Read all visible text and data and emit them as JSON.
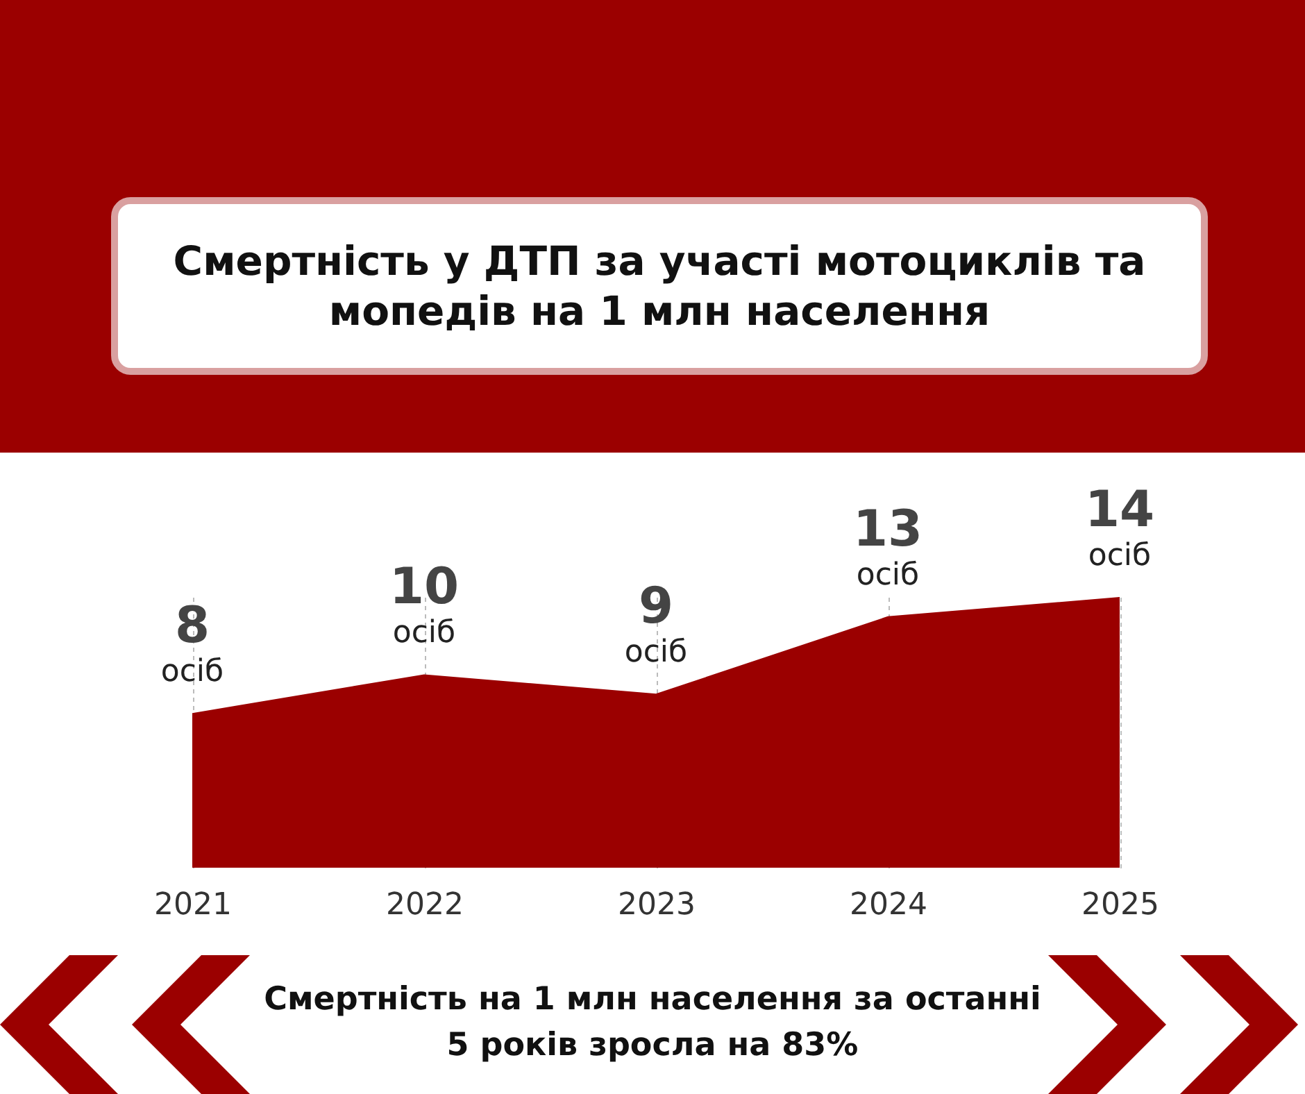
{
  "chart_data": {
    "type": "area",
    "title": "Смертність у ДТП за участі мотоциклів та мопедів на 1 млн населення",
    "categories": [
      "2021",
      "2022",
      "2023",
      "2024",
      "2025"
    ],
    "series": [
      {
        "color": "#9b0000",
        "values": [
          8,
          10,
          9,
          13,
          14
        ]
      }
    ],
    "data_labels": true,
    "tick_labels": "x",
    "grid": "x",
    "annotations": [
      {
        "text": "осіб",
        "x": "2021",
        "y": 8
      },
      {
        "text": "осіб",
        "x": "2022",
        "y": 10
      },
      {
        "text": "осіб",
        "x": "2023",
        "y": 9
      },
      {
        "text": "осіб",
        "x": "2024",
        "y": 13
      },
      {
        "text": "осіб",
        "x": "2025",
        "y": 14
      },
      "Смертність на  1 млн населення за останні 5 років зросла на 83%"
    ]
  }
}
